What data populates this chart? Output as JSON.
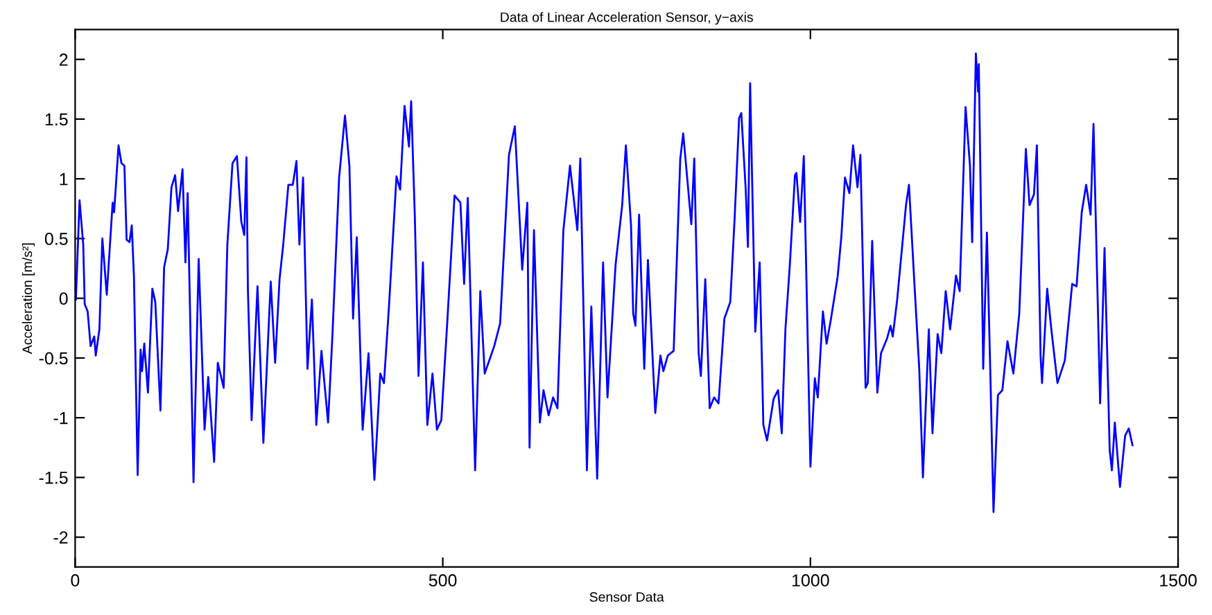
{
  "chart_data": {
    "type": "line",
    "title": "Data of Linear Acceleration Sensor, y−axis",
    "xlabel": "Sensor Data",
    "ylabel": "Acceleration [m/s²]",
    "xlim": [
      0,
      1500
    ],
    "ylim": [
      -2.25,
      2.25
    ],
    "xticks": [
      0,
      500,
      1000,
      1500
    ],
    "yticks": [
      -2,
      -1.5,
      -1,
      -0.5,
      0,
      0.5,
      1,
      1.5,
      2
    ],
    "grid": false,
    "marker": "none",
    "line_style": "solid",
    "series": [
      {
        "color": "#0000ff",
        "x": [
          1,
          6,
          11,
          13,
          17,
          21,
          26,
          28,
          33,
          37,
          43,
          51,
          53,
          59,
          63,
          67,
          70,
          74,
          77,
          80,
          85,
          89,
          91,
          94,
          99,
          105,
          109,
          116,
          121,
          126,
          131,
          136,
          140,
          146,
          150,
          153,
          161,
          168,
          176,
          181,
          189,
          194,
          202,
          207,
          214,
          220,
          226,
          230,
          233,
          235,
          240,
          248,
          256,
          266,
          272,
          278,
          283,
          290,
          296,
          301,
          305,
          310,
          316,
          322,
          328,
          335,
          344,
          350,
          359,
          367,
          373,
          378,
          383,
          391,
          399,
          407,
          415,
          420,
          427,
          437,
          442,
          448,
          454,
          457,
          462,
          467,
          473,
          479,
          486,
          492,
          498,
          506,
          516,
          524,
          529,
          534,
          544,
          551,
          557,
          570,
          578,
          584,
          590,
          598,
          608,
          615,
          618,
          624,
          632,
          637,
          644,
          650,
          656,
          664,
          673,
          683,
          687,
          696,
          702,
          710,
          718,
          724,
          735,
          744,
          749,
          756,
          759,
          762,
          767,
          774,
          779,
          789,
          796,
          800,
          806,
          814,
          823,
          827,
          838,
          842,
          848,
          851,
          857,
          863,
          869,
          875,
          883,
          891,
          897,
          903,
          906,
          912,
          915,
          918,
          925,
          931,
          936,
          941,
          950,
          956,
          961,
          966,
          972,
          979,
          981,
          986,
          991,
          1000,
          1006,
          1010,
          1017,
          1022,
          1028,
          1037,
          1042,
          1047,
          1053,
          1058,
          1064,
          1068,
          1075,
          1078,
          1084,
          1091,
          1096,
          1104,
          1109,
          1112,
          1118,
          1130,
          1134,
          1142,
          1148,
          1153,
          1161,
          1166,
          1173,
          1178,
          1184,
          1190,
          1198,
          1203,
          1211,
          1217,
          1220,
          1225,
          1228,
          1229,
          1235,
          1240,
          1245,
          1249,
          1255,
          1261,
          1268,
          1276,
          1279,
          1284,
          1293,
          1298,
          1304,
          1308,
          1313,
          1315,
          1322,
          1328,
          1336,
          1346,
          1356,
          1362,
          1369,
          1375,
          1381,
          1385,
          1394,
          1400,
          1407,
          1410,
          1414,
          1421,
          1428,
          1433,
          1438
        ],
        "values": [
          -0.01,
          0.82,
          0.45,
          -0.05,
          -0.11,
          -0.4,
          -0.32,
          -0.48,
          -0.26,
          0.5,
          0.03,
          0.8,
          0.72,
          1.28,
          1.13,
          1.11,
          0.49,
          0.47,
          0.61,
          0.18,
          -1.48,
          -0.43,
          -0.61,
          -0.38,
          -0.79,
          0.08,
          -0.03,
          -0.94,
          0.26,
          0.41,
          0.93,
          1.03,
          0.73,
          1.08,
          0.3,
          0.88,
          -1.54,
          0.33,
          -1.1,
          -0.66,
          -1.37,
          -0.54,
          -0.75,
          0.45,
          1.13,
          1.19,
          0.64,
          0.53,
          1.18,
          0.06,
          -1.02,
          0.1,
          -1.21,
          0.14,
          -0.54,
          0.16,
          0.45,
          0.95,
          0.95,
          1.15,
          0.45,
          1.01,
          -0.59,
          -0.01,
          -1.06,
          -0.44,
          -1.04,
          -0.3,
          1.01,
          1.53,
          1.11,
          -0.17,
          0.51,
          -1.1,
          -0.46,
          -1.52,
          -0.63,
          -0.71,
          -0.05,
          1.02,
          0.91,
          1.61,
          1.27,
          1.65,
          0.68,
          -0.65,
          0.3,
          -1.06,
          -0.63,
          -1.1,
          -1.02,
          -0.21,
          0.86,
          0.8,
          0.12,
          0.84,
          -1.44,
          0.06,
          -0.63,
          -0.4,
          -0.21,
          0.49,
          1.2,
          1.44,
          0.24,
          0.8,
          -1.25,
          0.57,
          -1.04,
          -0.77,
          -0.98,
          -0.83,
          -0.92,
          0.57,
          1.11,
          0.57,
          1.17,
          -1.44,
          -0.07,
          -1.51,
          0.3,
          -0.83,
          0.28,
          0.78,
          1.28,
          0.61,
          -0.13,
          -0.23,
          0.7,
          -0.59,
          0.32,
          -0.96,
          -0.48,
          -0.61,
          -0.48,
          -0.44,
          1.17,
          1.38,
          0.62,
          1.17,
          -0.46,
          -0.65,
          0.16,
          -0.92,
          -0.83,
          -0.88,
          -0.17,
          -0.03,
          0.68,
          1.51,
          1.55,
          0.91,
          0.43,
          1.8,
          -0.28,
          0.3,
          -1.06,
          -1.19,
          -0.84,
          -0.77,
          -1.13,
          -0.26,
          0.28,
          1.03,
          1.05,
          0.64,
          1.19,
          -1.41,
          -0.67,
          -0.83,
          -0.11,
          -0.38,
          -0.17,
          0.18,
          0.51,
          1.01,
          0.88,
          1.28,
          0.93,
          1.2,
          -0.75,
          -0.71,
          0.48,
          -0.79,
          -0.46,
          -0.34,
          -0.23,
          -0.32,
          -0.01,
          0.78,
          0.95,
          0.06,
          -0.59,
          -1.5,
          -0.26,
          -1.13,
          -0.3,
          -0.46,
          0.06,
          -0.26,
          0.19,
          0.06,
          1.6,
          1.11,
          0.47,
          2.05,
          1.73,
          1.96,
          -0.59,
          0.55,
          -0.71,
          -1.79,
          -0.81,
          -0.77,
          -0.36,
          -0.63,
          -0.44,
          -0.13,
          1.25,
          0.78,
          0.87,
          1.28,
          -0.48,
          -0.71,
          0.08,
          -0.28,
          -0.71,
          -0.52,
          0.12,
          0.1,
          0.72,
          0.95,
          0.7,
          1.46,
          -0.88,
          0.42,
          -1.27,
          -1.44,
          -1.04,
          -1.58,
          -1.15,
          -1.09,
          -1.23
        ]
      }
    ]
  }
}
